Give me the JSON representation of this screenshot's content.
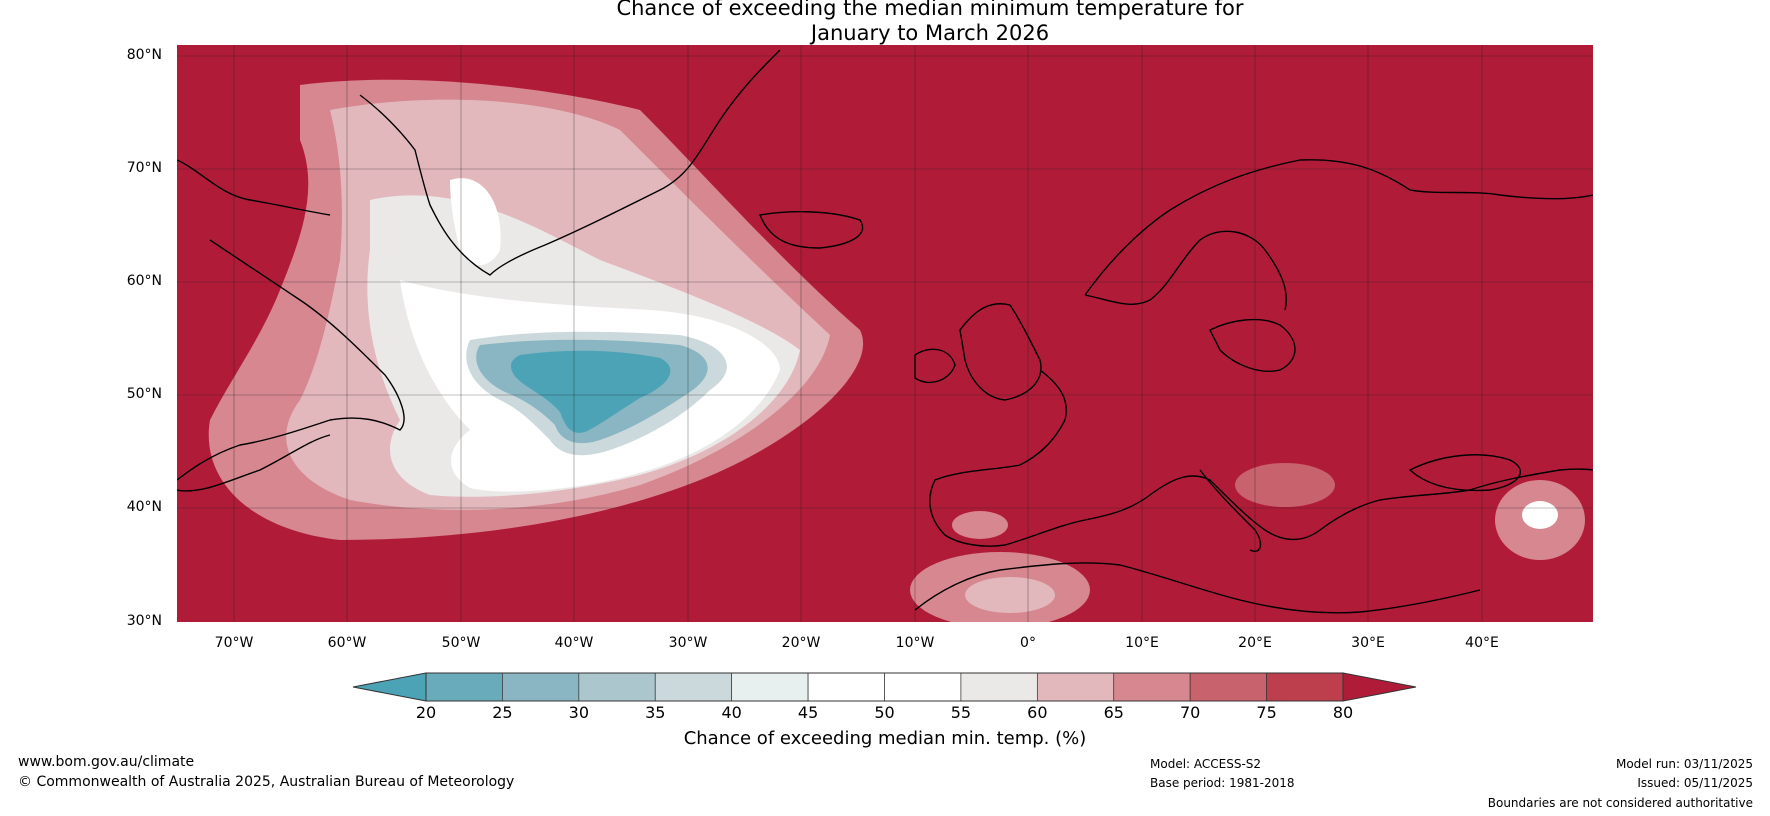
{
  "title_line1": "Chance of exceeding the median minimum temperature for",
  "title_line2": "January to March 2026",
  "lat_labels": [
    "80°N",
    "70°N",
    "60°N",
    "50°N",
    "40°N",
    "30°N"
  ],
  "lon_labels": [
    "70°W",
    "60°W",
    "50°W",
    "40°W",
    "30°W",
    "20°W",
    "10°W",
    "0°",
    "10°E",
    "20°E",
    "30°E",
    "40°E"
  ],
  "colorbar": {
    "ticks": [
      "20",
      "25",
      "30",
      "35",
      "40",
      "45",
      "50",
      "55",
      "60",
      "65",
      "70",
      "75",
      "80"
    ],
    "colors": [
      "#4ba3b5",
      "#6aabbb",
      "#89b6c2",
      "#abc6cd",
      "#ccd9dc",
      "#e8efef",
      "#ffffff",
      "#ffffff",
      "#ebe8e8",
      "#e2b8bd",
      "#d68790",
      "#c8626c",
      "#bd3e4d",
      "#b01c38"
    ],
    "label": "Chance of exceeding median min. temp. (%)"
  },
  "footer": {
    "website": "www.bom.gov.au/climate",
    "copyright": "© Commonwealth of Australia 2025, Australian Bureau of Meteorology",
    "model": "Model: ACCESS-S2",
    "base_period": "Base period: 1981-2018",
    "model_run": "Model run: 03/11/2025",
    "issued": "Issued: 05/11/2025",
    "disclaimer": "Boundaries are not considered authoritative"
  }
}
